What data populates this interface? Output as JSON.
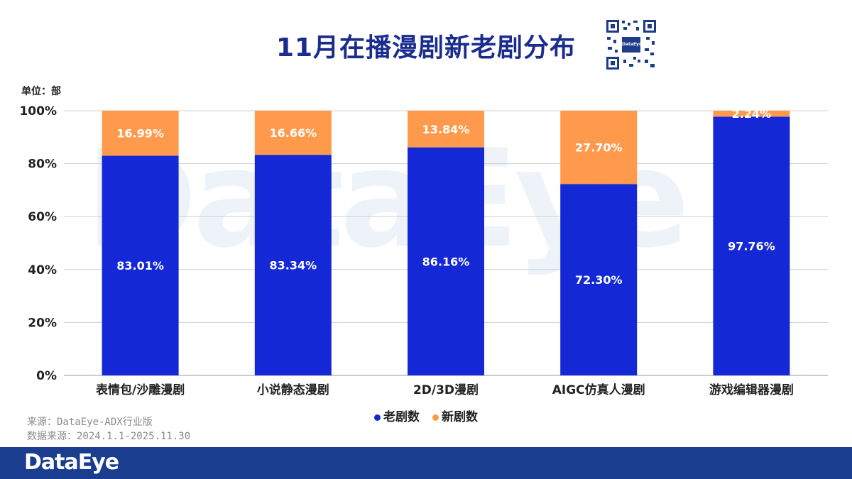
{
  "title": "11月在播漫剧新老剧分布",
  "unit_label": "单位：部",
  "watermark": "DataEye",
  "legend": [
    {
      "label": "老剧数",
      "color": "#1428d6"
    },
    {
      "label": "新剧数",
      "color": "#ff9a4d"
    }
  ],
  "source_lines": [
    "来源：DataEye-ADX行业版",
    "数据来源：2024.1.1-2025.11.30"
  ],
  "footer_logo": "DataEye",
  "qr_logo": "DataEye",
  "colors": {
    "old": "#1428d6",
    "new": "#ff9a4d",
    "title": "#1a2d8f",
    "footer": "#1b3d8f"
  },
  "chart_data": {
    "type": "bar",
    "stacked": true,
    "categories": [
      "表情包/沙雕漫剧",
      "小说静态漫剧",
      "2D/3D漫剧",
      "AIGC仿真人漫剧",
      "游戏编辑器漫剧"
    ],
    "series": [
      {
        "name": "老剧数",
        "values": [
          83.01,
          83.34,
          86.16,
          72.3,
          97.76
        ],
        "labels": [
          "83.01%",
          "83.34%",
          "86.16%",
          "72.30%",
          "97.76%"
        ]
      },
      {
        "name": "新剧数",
        "values": [
          16.99,
          16.66,
          13.84,
          27.7,
          2.24
        ],
        "labels": [
          "16.99%",
          "16.66%",
          "13.84%",
          "27.70%",
          "2.24%"
        ]
      }
    ],
    "yticks": [
      "0%",
      "20%",
      "40%",
      "60%",
      "80%",
      "100%"
    ],
    "ylim": [
      0,
      100
    ],
    "grid": true,
    "legend_position": "bottom"
  }
}
